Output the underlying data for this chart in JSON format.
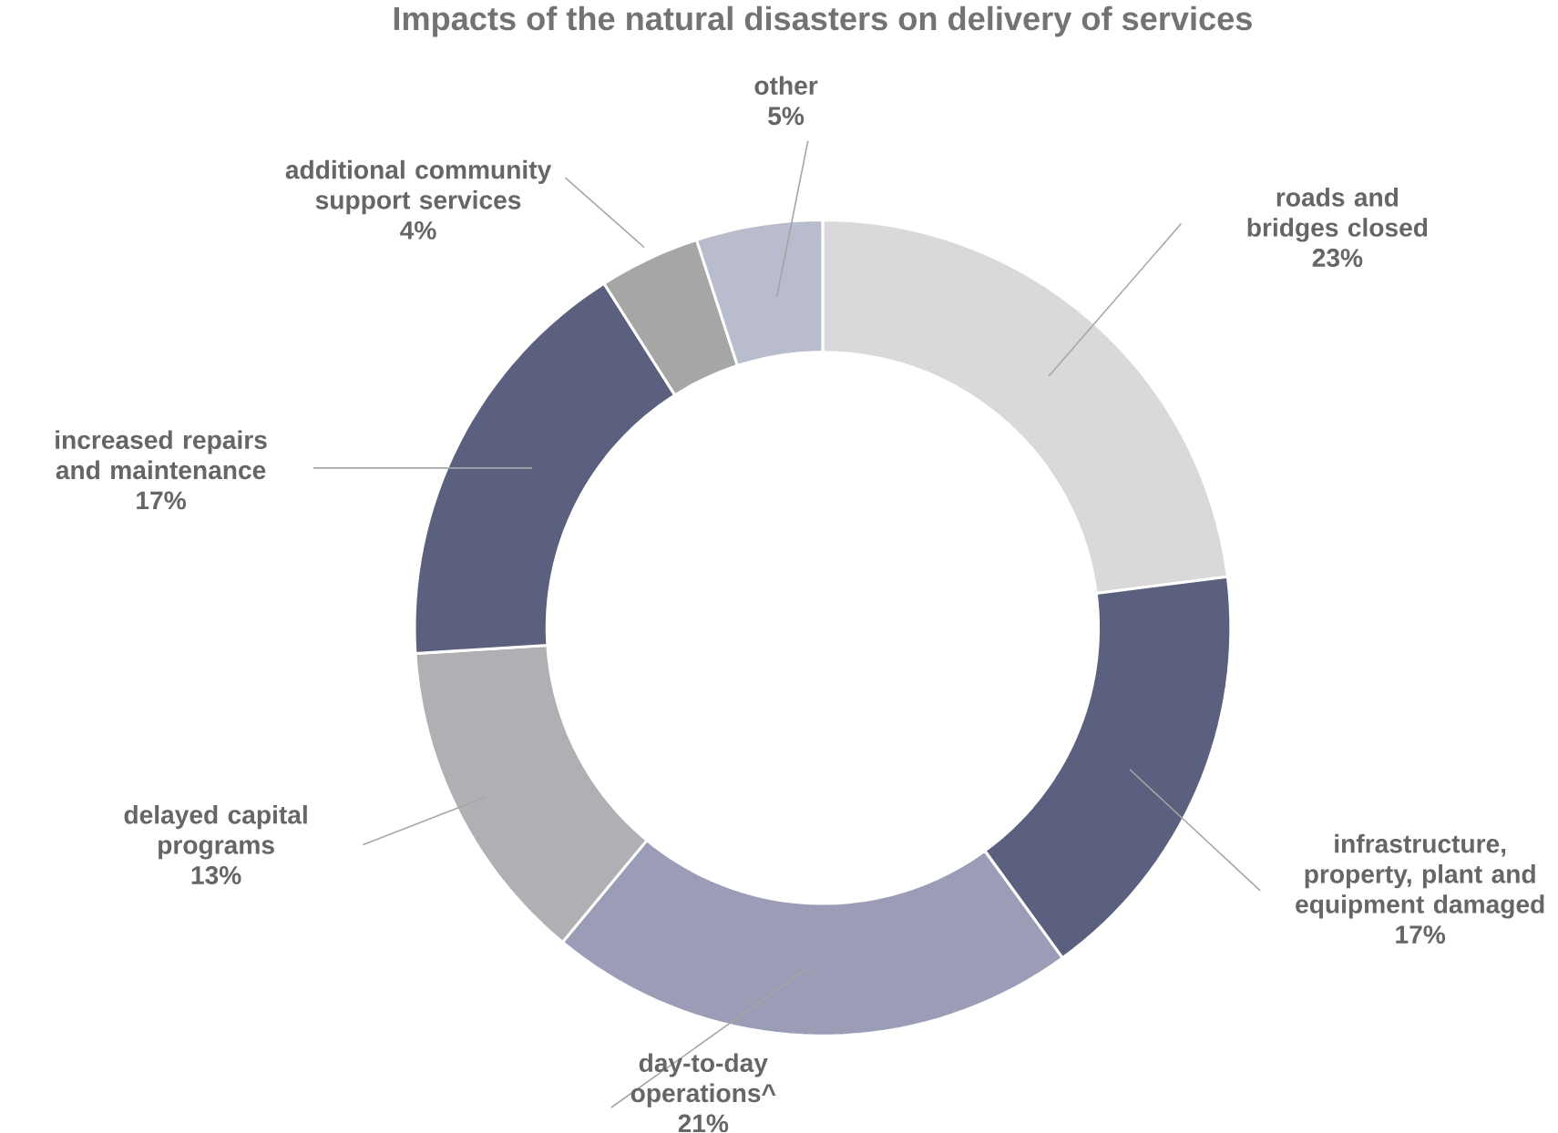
{
  "chart_data": {
    "type": "donut",
    "title": "Impacts of the natural disasters on delivery of services",
    "categories": [
      "roads and bridges closed",
      "infrastructure, property, plant and equipment damaged",
      "day-to-day operations^",
      "delayed capital programs",
      "increased repairs and maintenance",
      "additional community support services",
      "other"
    ],
    "values": [
      23,
      17,
      21,
      13,
      17,
      4,
      5
    ],
    "value_labels": [
      "23%",
      "17%",
      "21%",
      "13%",
      "17%",
      "4%",
      "5%"
    ],
    "colors": [
      "#d9d9db",
      "#5a607d",
      "#9a9db5",
      "#b0b0b4",
      "#5a607d",
      "#a6a6a6",
      "#b8bccd"
    ]
  }
}
